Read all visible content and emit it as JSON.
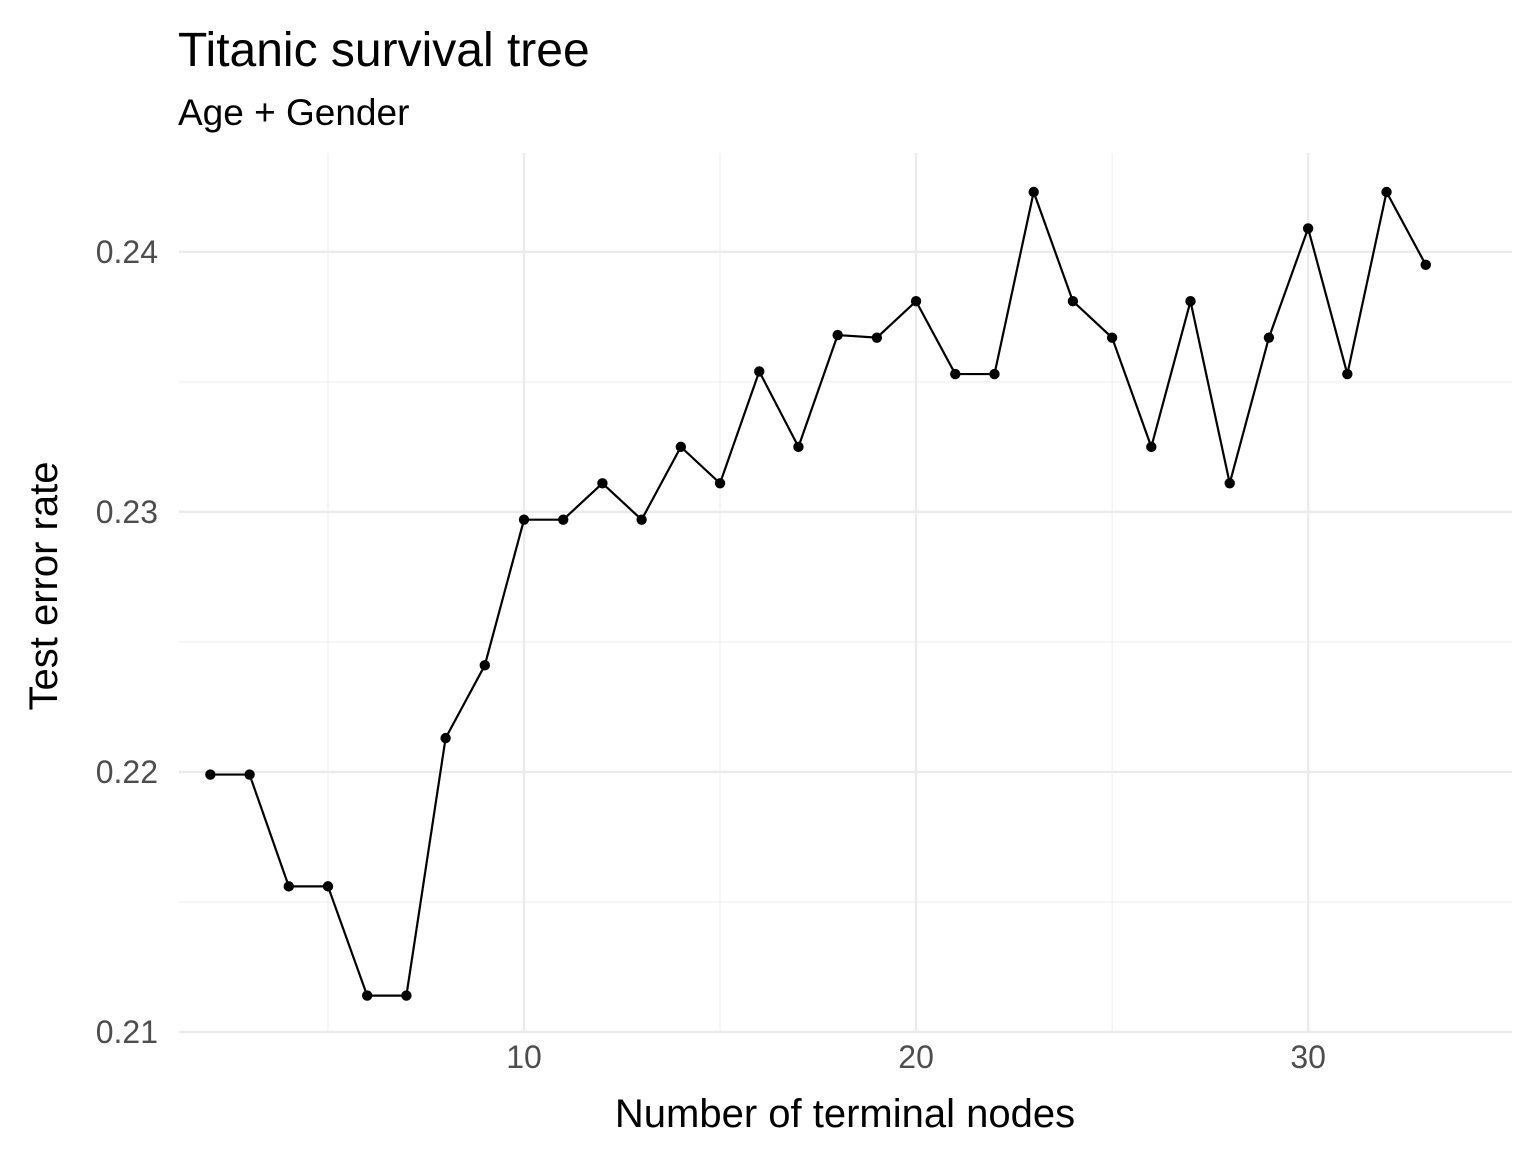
{
  "chart_data": {
    "type": "line",
    "title": "Titanic survival tree",
    "subtitle": "Age + Gender",
    "xlabel": "Number of terminal nodes",
    "ylabel": "Test error rate",
    "xlim": [
      1.2,
      35.2
    ],
    "ylim": [
      0.21,
      0.2438
    ],
    "x_ticks": [
      10,
      20,
      30
    ],
    "x_tick_labels": [
      "10",
      "20",
      "30"
    ],
    "x_minor_ticks": [
      5,
      15,
      25
    ],
    "y_ticks": [
      0.21,
      0.22,
      0.23,
      0.24
    ],
    "y_tick_labels": [
      "0.21",
      "0.22",
      "0.23",
      "0.24"
    ],
    "y_minor_ticks": [
      0.215,
      0.225,
      0.235
    ],
    "grid": true,
    "legend": "none",
    "colors": {
      "line": "#000000",
      "point": "#000000",
      "grid_major": "#ebebeb",
      "grid_minor": "#f2f2f2",
      "background": "#ffffff"
    },
    "series": [
      {
        "x": [
          2,
          3,
          4,
          5,
          6,
          7,
          8,
          9,
          10,
          11,
          12,
          13,
          14,
          15,
          16,
          17,
          18,
          19,
          20,
          21,
          22,
          23,
          24,
          25,
          26,
          27,
          28,
          29,
          30,
          31,
          32,
          33
        ],
        "values": [
          0.2199,
          0.2199,
          0.2156,
          0.2156,
          0.2114,
          0.2114,
          0.2213,
          0.2241,
          0.2297,
          0.2297,
          0.2311,
          0.2297,
          0.2325,
          0.2311,
          0.2354,
          0.2325,
          0.2368,
          0.2367,
          0.2381,
          0.2353,
          0.2353,
          0.2423,
          0.2381,
          0.2367,
          0.2325,
          0.2381,
          0.2311,
          0.2367,
          0.2409,
          0.2353,
          0.2423,
          0.2395
        ]
      }
    ]
  }
}
